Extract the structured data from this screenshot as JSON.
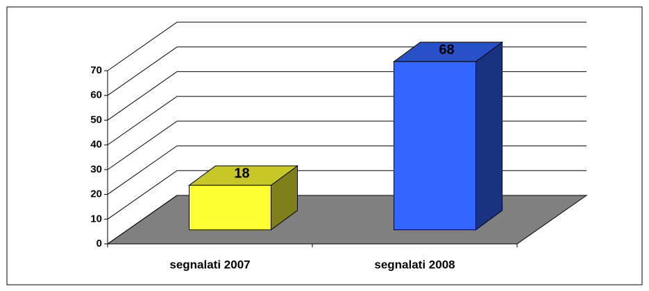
{
  "chart_data": {
    "type": "bar",
    "categories": [
      "segnalati 2007",
      "segnalati 2008"
    ],
    "values": [
      18,
      68
    ],
    "colors": [
      "#ffff33",
      "#3366ff"
    ],
    "ylim": [
      0,
      70
    ],
    "yticks": [
      0,
      10,
      20,
      30,
      40,
      50,
      60,
      70
    ],
    "grid": true
  }
}
